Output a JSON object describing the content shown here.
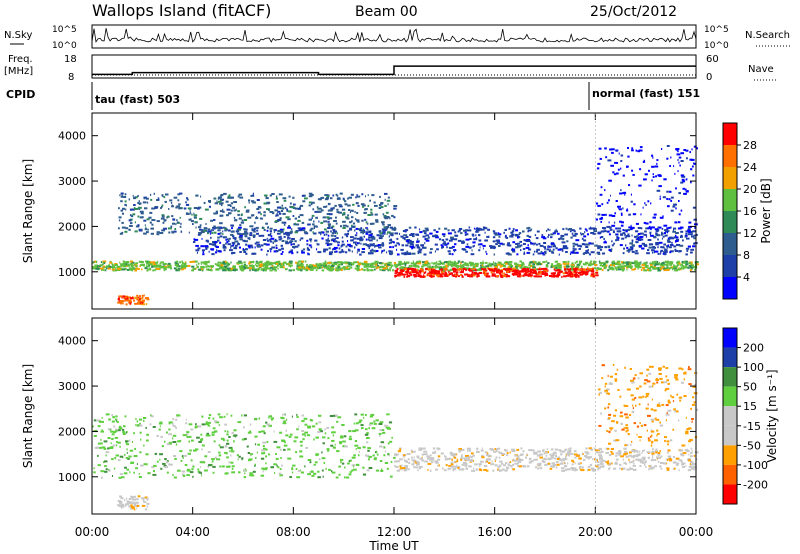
{
  "header": {
    "title": "Wallops Island (fitACF)",
    "beam": "Beam 00",
    "date": "25/Oct/2012"
  },
  "top_panels": {
    "nsky_label": "N.Sky",
    "nsky_ticks": [
      "10^5",
      "10^0"
    ],
    "nsearch_label": "N.Search",
    "nsearch_ticks": [
      "10^5",
      "10^0"
    ],
    "freq_label_1": "Freq.",
    "freq_label_2": "[MHz]",
    "freq_ticks": [
      "18",
      "8"
    ],
    "nave_label": "Nave",
    "nave_ticks": [
      "60",
      "0"
    ],
    "cpid_label": "CPID",
    "cpid_segments": [
      {
        "label": "tau (fast) 503",
        "start_hour": 0,
        "end_hour": 20
      },
      {
        "label": "normal (fast) 151",
        "start_hour": 20,
        "end_hour": 24
      }
    ],
    "freq_steps": [
      {
        "start": 0.0,
        "end": 1.6,
        "mhz": 10.0
      },
      {
        "start": 1.6,
        "end": 2.2,
        "mhz": 11.0
      },
      {
        "start": 2.2,
        "end": 9.0,
        "mhz": 11.0
      },
      {
        "start": 9.0,
        "end": 12.0,
        "mhz": 10.0
      },
      {
        "start": 12.0,
        "end": 24.0,
        "mhz": 14.6
      }
    ]
  },
  "chart_data": [
    {
      "type": "heatmap",
      "title": "",
      "xlabel": "",
      "ylabel": "Slant Range [km]",
      "x_domain_hours": [
        0,
        24
      ],
      "ylim": [
        180,
        4500
      ],
      "yticks": [
        "1000",
        "2000",
        "3000",
        "4000"
      ],
      "colorbar_label": "Power [dB]",
      "colorbar_ticks": [
        "28",
        "24",
        "20",
        "16",
        "12",
        "8",
        "4"
      ],
      "colorbar_colors": [
        "#0000ff",
        "#1f3fa8",
        "#2f5c8f",
        "#2e8b57",
        "#5fbf3f",
        "#f2a000",
        "#ff7000",
        "#ff0000"
      ],
      "scatter_bands": [
        {
          "start": 0.0,
          "end": 24.0,
          "center_km": 1150,
          "width_km": 200,
          "color_idx": 4
        },
        {
          "start": 12.0,
          "end": 20.0,
          "center_km": 1000,
          "width_km": 180,
          "color_idx": 7
        },
        {
          "start": 4.0,
          "end": 24.0,
          "center_km": 1700,
          "width_km": 600,
          "color_idx": 1
        },
        {
          "start": 1.0,
          "end": 12.0,
          "center_km": 2300,
          "width_km": 900,
          "color_idx": 2
        },
        {
          "start": 20.0,
          "end": 24.0,
          "center_km": 2800,
          "width_km": 2000,
          "color_idx": 0
        },
        {
          "start": 1.0,
          "end": 2.2,
          "center_km": 400,
          "width_km": 200,
          "color_idx": 6
        }
      ]
    },
    {
      "type": "heatmap",
      "title": "",
      "xlabel": "Time UT",
      "ylabel": "Slant Range [km]",
      "x_domain_hours": [
        0,
        24
      ],
      "ylim": [
        180,
        4500
      ],
      "yticks": [
        "1000",
        "2000",
        "3000",
        "4000"
      ],
      "xticks": [
        "00:00",
        "04:00",
        "08:00",
        "12:00",
        "16:00",
        "20:00",
        "00:00"
      ],
      "colorbar_label": "Velocity [m s⁻¹]",
      "colorbar_ticks": [
        "200",
        "100",
        "50",
        "15",
        "-15",
        "-50",
        "-100",
        "-200"
      ],
      "colorbar_colors": [
        "#ff0000",
        "#ff6000",
        "#ffa000",
        "#c8c8c8",
        "#c8c8c8",
        "#5fcf3f",
        "#3f8f3f",
        "#1f3fa8",
        "#0000ff"
      ],
      "scatter_bands": [
        {
          "start": 0.0,
          "end": 12.0,
          "center_km": 1700,
          "width_km": 1400,
          "color_idx": 5
        },
        {
          "start": 12.0,
          "end": 24.0,
          "center_km": 1400,
          "width_km": 500,
          "color_idx": 3
        },
        {
          "start": 20.0,
          "end": 24.0,
          "center_km": 2600,
          "width_km": 1800,
          "color_idx": 2
        },
        {
          "start": 1.0,
          "end": 2.2,
          "center_km": 450,
          "width_km": 300,
          "color_idx": 3
        }
      ]
    }
  ]
}
